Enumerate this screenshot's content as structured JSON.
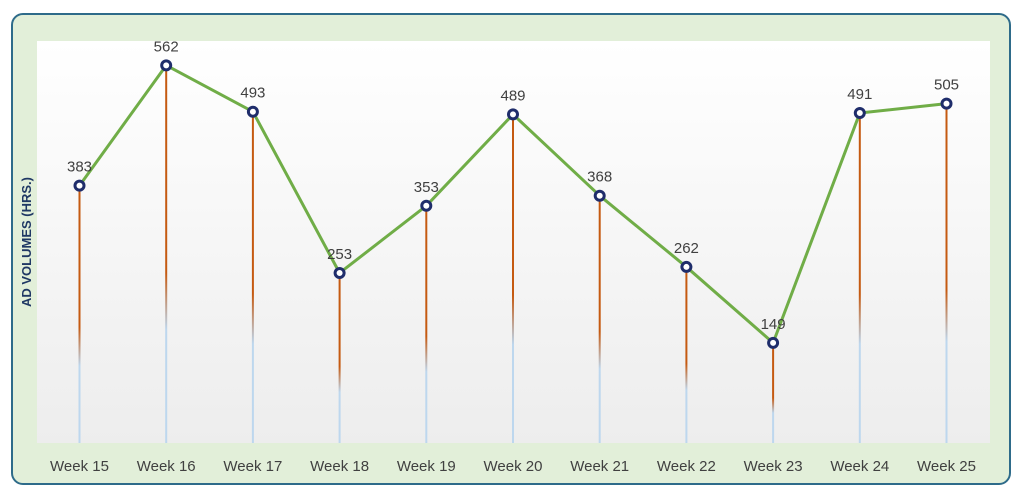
{
  "chart_data": {
    "type": "line",
    "title": "",
    "xlabel": "",
    "ylabel": "AD VOLUMES (HRS.)",
    "categories": [
      "Week 15",
      "Week 16",
      "Week 17",
      "Week 18",
      "Week 19",
      "Week 20",
      "Week 21",
      "Week 22",
      "Week 23",
      "Week 24",
      "Week 25"
    ],
    "series": [
      {
        "values": [
          383,
          562,
          493,
          253,
          353,
          489,
          368,
          262,
          149,
          491,
          505
        ]
      }
    ],
    "ylim": [
      0,
      600
    ],
    "data_labels": true,
    "drop_lines": true,
    "grid": false,
    "colors": {
      "line": "#70ad47",
      "marker_fill": "#ffffff",
      "marker_edge": "#1f2d6b",
      "drop_line_top": "#c55a11",
      "drop_line_bottom": "#bdd7ee",
      "frame_border": "#2e6b8a",
      "frame_background": "#e2efd9",
      "plot_background": "#ffffff"
    }
  }
}
